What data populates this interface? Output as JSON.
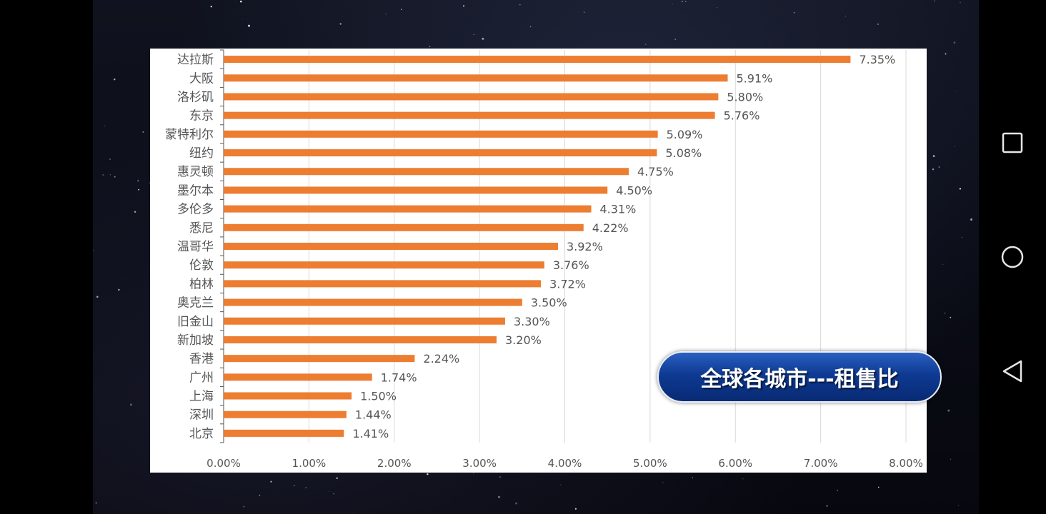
{
  "title_badge": "全球各城市---租售比",
  "nav": {
    "recent_icon": "square-icon",
    "home_icon": "circle-icon",
    "back_icon": "triangle-back-icon"
  },
  "colors": {
    "bar": "#ED7D31",
    "grid": "#D9D9D9",
    "axis": "#555555"
  },
  "chart_data": {
    "type": "bar",
    "orientation": "horizontal",
    "categories": [
      "达拉斯",
      "大阪",
      "洛杉矶",
      "东京",
      "蒙特利尔",
      "纽约",
      "惠灵顿",
      "墨尔本",
      "多伦多",
      "悉尼",
      "温哥华",
      "伦敦",
      "柏林",
      "奥克兰",
      "旧金山",
      "新加坡",
      "香港",
      "广州",
      "上海",
      "深圳",
      "北京"
    ],
    "values": [
      7.35,
      5.91,
      5.8,
      5.76,
      5.09,
      5.08,
      4.75,
      4.5,
      4.31,
      4.22,
      3.92,
      3.76,
      3.72,
      3.5,
      3.3,
      3.2,
      2.24,
      1.74,
      1.5,
      1.44,
      1.41
    ],
    "value_labels": [
      "7.35%",
      "5.91%",
      "5.80%",
      "5.76%",
      "5.09%",
      "5.08%",
      "4.75%",
      "4.50%",
      "4.31%",
      "4.22%",
      "3.92%",
      "3.76%",
      "3.72%",
      "3.50%",
      "3.30%",
      "3.20%",
      "2.24%",
      "1.74%",
      "1.50%",
      "1.44%",
      "1.41%"
    ],
    "xlim": [
      0,
      8
    ],
    "xticks": [
      0,
      1,
      2,
      3,
      4,
      5,
      6,
      7,
      8
    ],
    "xtick_labels": [
      "0.00%",
      "1.00%",
      "2.00%",
      "3.00%",
      "4.00%",
      "5.00%",
      "6.00%",
      "7.00%",
      "8.00%"
    ],
    "grid": true,
    "legend": "none"
  }
}
